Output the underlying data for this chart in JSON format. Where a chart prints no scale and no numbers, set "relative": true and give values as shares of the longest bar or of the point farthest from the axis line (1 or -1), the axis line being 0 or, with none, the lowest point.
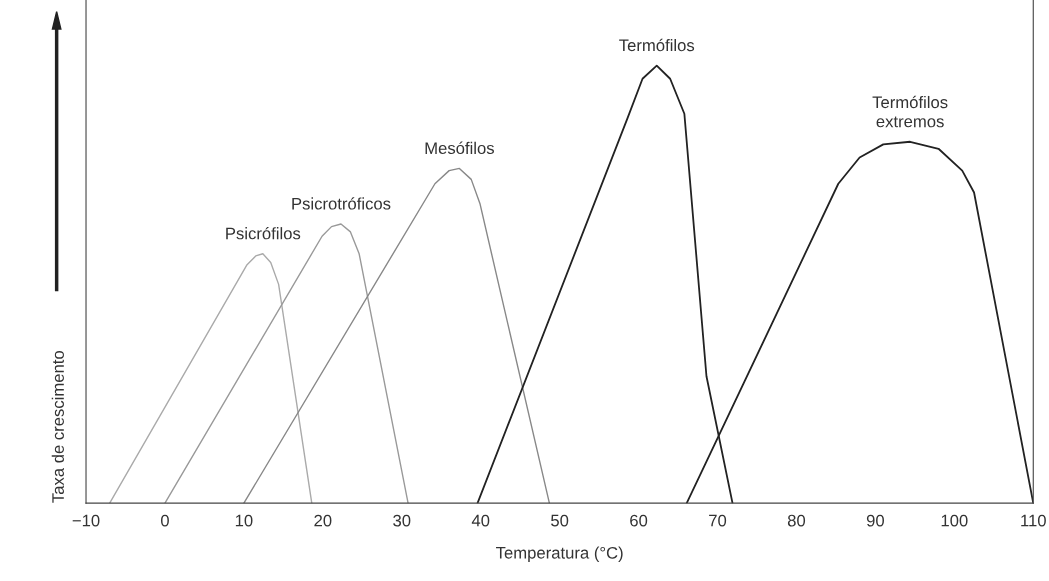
{
  "chart_data": {
    "type": "line",
    "relative": true,
    "xlabel": "Temperatura (°C)",
    "ylabel": "Taxa de crescimento",
    "xlim": [
      -10,
      110
    ],
    "xticks": [
      {
        "value": -10,
        "label": "−10"
      },
      0,
      10,
      20,
      30,
      40,
      50,
      60,
      70,
      80,
      90,
      100,
      110
    ],
    "series": [
      {
        "name": "Psicrófilos",
        "color": "#aaaaaa",
        "x": [
          -7.0,
          10.4,
          11.5,
          12.4,
          13.4,
          14.4,
          18.6
        ],
        "values": [
          0,
          0.545,
          0.565,
          0.57,
          0.55,
          0.5,
          0
        ]
      },
      {
        "name": "Psicrotróficos",
        "color": "#999999",
        "x": [
          0,
          19.9,
          21.1,
          22.3,
          23.5,
          24.6,
          30.8
        ],
        "values": [
          0,
          0.61,
          0.632,
          0.638,
          0.62,
          0.57,
          0
        ]
      },
      {
        "name": "Mesófilos",
        "color": "#888888",
        "x": [
          10,
          34.2,
          36,
          37.3,
          38.8,
          39.9,
          48.7
        ],
        "values": [
          0,
          0.73,
          0.76,
          0.765,
          0.74,
          0.685,
          0
        ]
      },
      {
        "name": "Termófilos",
        "color": "#222222",
        "x": [
          39.6,
          58.6,
          60.5,
          62.3,
          64,
          65.8,
          68.6,
          71.9
        ],
        "values": [
          0,
          0.88,
          0.97,
          1.0,
          0.97,
          0.89,
          0.29,
          0
        ]
      },
      {
        "name": "Termófilos\nextremos",
        "color": "#222222",
        "x": [
          66.1,
          85.3,
          88,
          91,
          94.4,
          98,
          101,
          102.5,
          110
        ],
        "values": [
          0,
          0.73,
          0.79,
          0.82,
          0.826,
          0.81,
          0.76,
          0.71,
          0
        ]
      }
    ]
  }
}
